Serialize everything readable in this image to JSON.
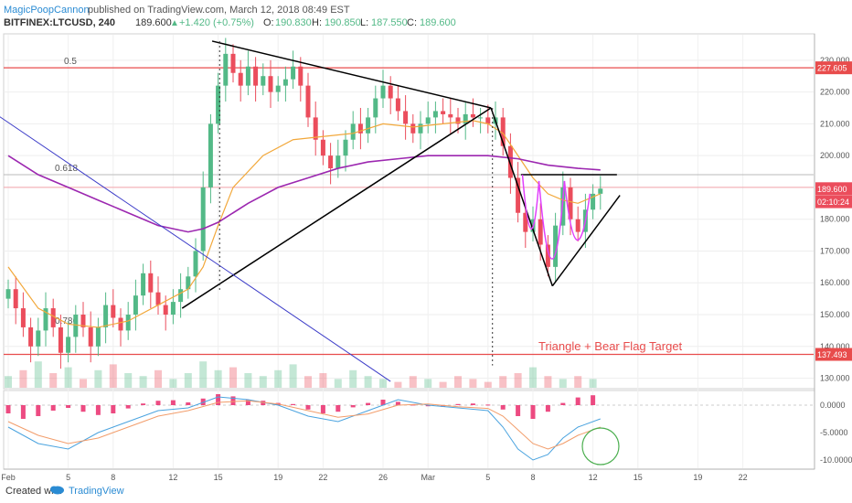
{
  "header": {
    "author": "MagicPoopCannon",
    "published": "published on TradingView.com, March 12, 2018 08:49 EST",
    "symbol": "BITFINEX:LTCUSD, 240",
    "last": "189.600",
    "change": "+1.420 (+0.75%)",
    "o_label": "O:",
    "o_value": "190.830",
    "h_label": "H:",
    "h_value": "190.850",
    "l_label": "L:",
    "l_value": "187.550",
    "c_label": "C:",
    "c_value": "189.600"
  },
  "footer": {
    "created_with": "Created with",
    "brand": "TradingView"
  },
  "colors": {
    "up": "#53b987",
    "down": "#eb4d5c",
    "ema_fast": "#f2a83b",
    "ema_slow": "#9c27b0",
    "horizontal": "#e84c4c",
    "diagonal_blue": "#3c3cc8",
    "pattern_magenta": "#e040fb",
    "macd_hist": "#e91e63",
    "macd_line": "#4aa3df",
    "signal_line": "#f29d6b",
    "circle": "#4caf50"
  },
  "chart_data": {
    "type": "candlestick",
    "title": "",
    "xlabel": "",
    "ylabel": "",
    "ylim": [
      127,
      238
    ],
    "y_ticks": [
      130,
      140,
      150,
      160,
      170,
      180,
      190,
      200,
      210,
      220,
      230
    ],
    "y_tick_labels": [
      "130.000",
      "140.000",
      "150.000",
      "160.000",
      "170.000",
      "180.000",
      "190.000",
      "200.000",
      "210.000",
      "220.000",
      "230.000"
    ],
    "x_ticks": [
      "Feb",
      "5",
      "8",
      "12",
      "15",
      "19",
      "22",
      "26",
      "Mar",
      "5",
      "8",
      "12",
      "15",
      "19",
      "22"
    ],
    "x_tick_days": [
      1,
      5,
      8,
      12,
      15,
      19,
      22,
      26,
      29,
      33,
      36,
      40,
      43,
      47,
      50
    ],
    "price_badges": [
      {
        "label": "227.605",
        "value": 227.605,
        "color": "#e84c4c"
      },
      {
        "label": "189.600",
        "value": 189.6,
        "color": "#eb4d5c"
      },
      {
        "label": "02:10:24",
        "value": 185.5,
        "color": "#eb4d5c"
      },
      {
        "label": "137.493",
        "value": 137.493,
        "color": "#e84c4c"
      }
    ],
    "fib_levels": [
      {
        "label": "0.5",
        "value": 227.605
      },
      {
        "label": "0.618",
        "value": 194.0
      },
      {
        "label": "0.786",
        "value": 146.0
      }
    ],
    "horizontal_lines": [
      227.605,
      137.493,
      194.0,
      190.0
    ],
    "annotation": "Triangle + Bear Flag Target",
    "closes": [
      [
        1,
        158
      ],
      [
        1.5,
        152
      ],
      [
        2,
        146
      ],
      [
        2.5,
        140
      ],
      [
        3,
        145
      ],
      [
        3.5,
        152
      ],
      [
        4,
        146
      ],
      [
        4.5,
        138
      ],
      [
        5,
        143
      ],
      [
        5.5,
        150
      ],
      [
        6,
        146
      ],
      [
        6.5,
        140
      ],
      [
        7,
        146
      ],
      [
        7.5,
        153
      ],
      [
        8,
        149
      ],
      [
        8.5,
        145
      ],
      [
        9,
        150
      ],
      [
        9.5,
        156
      ],
      [
        10,
        163
      ],
      [
        10.5,
        157
      ],
      [
        11,
        153
      ],
      [
        11.5,
        150
      ],
      [
        12,
        154
      ],
      [
        12.5,
        158
      ],
      [
        13,
        162
      ],
      [
        13.5,
        170
      ],
      [
        14,
        190
      ],
      [
        14.5,
        210
      ],
      [
        15,
        222
      ],
      [
        15.5,
        232
      ],
      [
        16,
        226
      ],
      [
        16.5,
        222
      ],
      [
        17,
        228
      ],
      [
        17.5,
        222
      ],
      [
        18,
        225
      ],
      [
        18.5,
        220
      ],
      [
        19,
        222
      ],
      [
        19.5,
        224
      ],
      [
        20,
        228
      ],
      [
        20.5,
        222
      ],
      [
        21,
        212
      ],
      [
        21.5,
        205
      ],
      [
        22,
        200
      ],
      [
        22.5,
        196
      ],
      [
        23,
        200
      ],
      [
        23.5,
        205
      ],
      [
        24,
        210
      ],
      [
        24.5,
        207
      ],
      [
        25,
        212
      ],
      [
        25.5,
        218
      ],
      [
        26,
        222
      ],
      [
        26.5,
        218
      ],
      [
        27,
        214
      ],
      [
        27.5,
        210
      ],
      [
        28,
        207
      ],
      [
        28.5,
        210
      ],
      [
        29,
        212
      ],
      [
        29.5,
        214
      ],
      [
        30,
        213
      ],
      [
        30.5,
        212
      ],
      [
        31,
        210
      ],
      [
        31.5,
        213
      ],
      [
        32,
        212
      ],
      [
        32.5,
        212
      ],
      [
        33,
        210
      ],
      [
        33.5,
        212
      ],
      [
        34,
        203
      ],
      [
        34.5,
        193
      ],
      [
        35,
        182
      ],
      [
        35.5,
        176
      ],
      [
        36,
        180
      ],
      [
        36.5,
        172
      ],
      [
        37,
        165
      ],
      [
        37.5,
        178
      ],
      [
        38,
        190
      ],
      [
        38.5,
        180
      ],
      [
        39,
        176
      ],
      [
        39.5,
        183
      ],
      [
        40,
        188
      ],
      [
        40.5,
        189.6
      ]
    ],
    "ema_fast": [
      [
        1,
        165
      ],
      [
        3,
        152
      ],
      [
        5,
        147
      ],
      [
        7,
        146
      ],
      [
        9,
        148
      ],
      [
        11,
        153
      ],
      [
        13,
        158
      ],
      [
        14,
        165
      ],
      [
        15,
        178
      ],
      [
        16,
        190
      ],
      [
        18,
        200
      ],
      [
        20,
        205
      ],
      [
        22,
        206
      ],
      [
        24,
        207
      ],
      [
        26,
        210
      ],
      [
        28,
        209
      ],
      [
        30,
        210
      ],
      [
        32,
        211
      ],
      [
        33,
        210
      ],
      [
        34,
        207
      ],
      [
        35,
        200
      ],
      [
        36,
        193
      ],
      [
        37,
        188
      ],
      [
        38,
        186
      ],
      [
        39,
        185
      ],
      [
        40,
        187
      ],
      [
        40.5,
        188
      ]
    ],
    "ema_slow": [
      [
        1,
        200
      ],
      [
        3,
        194
      ],
      [
        5,
        190
      ],
      [
        7,
        186
      ],
      [
        9,
        182
      ],
      [
        11,
        178
      ],
      [
        13,
        176
      ],
      [
        14,
        177
      ],
      [
        15,
        179
      ],
      [
        17,
        185
      ],
      [
        19,
        190
      ],
      [
        21,
        193
      ],
      [
        23,
        196
      ],
      [
        25,
        198
      ],
      [
        27,
        199
      ],
      [
        29,
        200
      ],
      [
        31,
        200
      ],
      [
        33,
        200
      ],
      [
        35,
        199
      ],
      [
        37,
        197
      ],
      [
        39,
        196
      ],
      [
        40.5,
        195.5
      ]
    ],
    "volume": [
      [
        1,
        4
      ],
      [
        2,
        6
      ],
      [
        3,
        9
      ],
      [
        4,
        5
      ],
      [
        5,
        7
      ],
      [
        6,
        3
      ],
      [
        7,
        6
      ],
      [
        8,
        8
      ],
      [
        9,
        5
      ],
      [
        10,
        4
      ],
      [
        11,
        6
      ],
      [
        12,
        3
      ],
      [
        13,
        5
      ],
      [
        14,
        9
      ],
      [
        15,
        6
      ],
      [
        16,
        7
      ],
      [
        17,
        5
      ],
      [
        18,
        4
      ],
      [
        19,
        6
      ],
      [
        20,
        8
      ],
      [
        21,
        4
      ],
      [
        22,
        5
      ],
      [
        23,
        3
      ],
      [
        24,
        6
      ],
      [
        25,
        4
      ],
      [
        26,
        3
      ],
      [
        27,
        2
      ],
      [
        28,
        4
      ],
      [
        29,
        3
      ],
      [
        30,
        2
      ],
      [
        31,
        4
      ],
      [
        32,
        3
      ],
      [
        33,
        2
      ],
      [
        34,
        4
      ],
      [
        35,
        5
      ],
      [
        36,
        7
      ],
      [
        37,
        4
      ],
      [
        38,
        3
      ],
      [
        39,
        4
      ],
      [
        40,
        3
      ]
    ],
    "macd": {
      "ylim": [
        -11.5,
        2.5
      ],
      "y_ticks": [
        0,
        -5,
        -10
      ],
      "y_tick_labels": [
        "0.0000",
        "-5.0000",
        "-10.0000"
      ],
      "hist": [
        [
          1,
          -1.5
        ],
        [
          2,
          -2.5
        ],
        [
          3,
          -2.0
        ],
        [
          4,
          -1.0
        ],
        [
          5,
          -0.5
        ],
        [
          6,
          -1.2
        ],
        [
          7,
          -1.8
        ],
        [
          8,
          -1.5
        ],
        [
          9,
          -0.6
        ],
        [
          10,
          0.3
        ],
        [
          11,
          0.8
        ],
        [
          12,
          0.9
        ],
        [
          13,
          0.5
        ],
        [
          14,
          1.2
        ],
        [
          15,
          2.0
        ],
        [
          16,
          1.6
        ],
        [
          17,
          1.0
        ],
        [
          18,
          0.8
        ],
        [
          19,
          0.4
        ],
        [
          20,
          0.2
        ],
        [
          21,
          -0.8
        ],
        [
          22,
          -1.5
        ],
        [
          23,
          -1.2
        ],
        [
          24,
          -0.4
        ],
        [
          25,
          0.4
        ],
        [
          26,
          1.0
        ],
        [
          27,
          0.6
        ],
        [
          28,
          0.1
        ],
        [
          29,
          -0.2
        ],
        [
          30,
          -0.3
        ],
        [
          31,
          0.2
        ],
        [
          32,
          0.3
        ],
        [
          33,
          0.1
        ],
        [
          34,
          -0.8
        ],
        [
          35,
          -2.0
        ],
        [
          36,
          -2.5
        ],
        [
          37,
          -1.2
        ],
        [
          38,
          0.4
        ],
        [
          39,
          1.4
        ],
        [
          40,
          1.8
        ]
      ],
      "line": [
        [
          1,
          -4
        ],
        [
          3,
          -7
        ],
        [
          5,
          -8
        ],
        [
          7,
          -5
        ],
        [
          9,
          -3
        ],
        [
          11,
          -1
        ],
        [
          13,
          -0.5
        ],
        [
          15,
          1.5
        ],
        [
          17,
          1
        ],
        [
          19,
          0
        ],
        [
          21,
          -2
        ],
        [
          23,
          -3
        ],
        [
          25,
          -1
        ],
        [
          27,
          1
        ],
        [
          29,
          0
        ],
        [
          31,
          -0.5
        ],
        [
          33,
          -1
        ],
        [
          34,
          -4
        ],
        [
          35,
          -8
        ],
        [
          36,
          -10
        ],
        [
          37,
          -9
        ],
        [
          38,
          -6
        ],
        [
          39,
          -4
        ],
        [
          40.5,
          -2.5
        ]
      ],
      "signal": [
        [
          1,
          -3
        ],
        [
          3,
          -5.5
        ],
        [
          5,
          -7
        ],
        [
          7,
          -6
        ],
        [
          9,
          -4
        ],
        [
          11,
          -2
        ],
        [
          13,
          -1
        ],
        [
          15,
          0.5
        ],
        [
          17,
          0.8
        ],
        [
          19,
          0.2
        ],
        [
          21,
          -1
        ],
        [
          23,
          -2.2
        ],
        [
          25,
          -1.6
        ],
        [
          27,
          0
        ],
        [
          29,
          0.2
        ],
        [
          31,
          -0.3
        ],
        [
          33,
          -0.6
        ],
        [
          34,
          -2
        ],
        [
          35,
          -4.5
        ],
        [
          36,
          -7
        ],
        [
          37,
          -8
        ],
        [
          38,
          -7
        ],
        [
          39,
          -5.5
        ],
        [
          40.5,
          -4
        ]
      ]
    },
    "trendlines": [
      {
        "from": [
          14.6,
          236
        ],
        "to": [
          33.2,
          215
        ],
        "color": "#000000"
      },
      {
        "from": [
          12.6,
          152
        ],
        "to": [
          33.2,
          215
        ],
        "color": "#000000"
      },
      {
        "from": [
          33.2,
          215
        ],
        "to": [
          37.3,
          159
        ],
        "color": "#000000"
      },
      {
        "from": [
          37.3,
          159
        ],
        "to": [
          41.8,
          187.5
        ],
        "color": "#000000"
      },
      {
        "from": [
          35.2,
          194
        ],
        "to": [
          41.6,
          194
        ],
        "color": "#000000"
      },
      {
        "from": [
          -2,
          220
        ],
        "to": [
          26.5,
          129
        ],
        "color": "#3c3cc8"
      }
    ],
    "projections": [
      {
        "x": 15.1,
        "from": 236,
        "to": 157
      },
      {
        "x": 33.3,
        "from": 215,
        "to": 134
      }
    ]
  }
}
